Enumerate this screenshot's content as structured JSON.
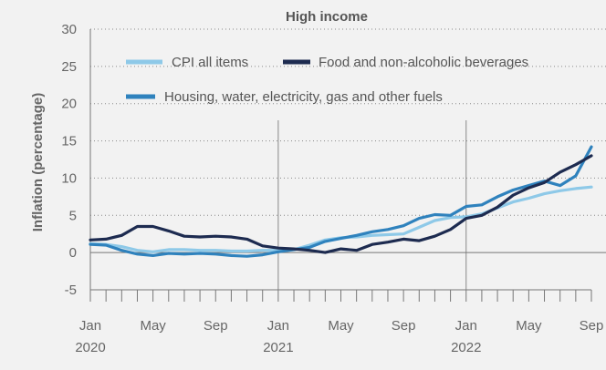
{
  "chart_data": {
    "type": "line",
    "title": "High income",
    "ylabel": "Inflation (percentage)",
    "xlabel": "",
    "ylim": [
      -5,
      30
    ],
    "yticks": [
      -5,
      0,
      5,
      10,
      15,
      20,
      25,
      30
    ],
    "grid": "dotted horizontal",
    "x": [
      "2020-01",
      "2020-02",
      "2020-03",
      "2020-04",
      "2020-05",
      "2020-06",
      "2020-07",
      "2020-08",
      "2020-09",
      "2020-10",
      "2020-11",
      "2020-12",
      "2021-01",
      "2021-02",
      "2021-03",
      "2021-04",
      "2021-05",
      "2021-06",
      "2021-07",
      "2021-08",
      "2021-09",
      "2021-10",
      "2021-11",
      "2021-12",
      "2022-01",
      "2022-02",
      "2022-03",
      "2022-04",
      "2022-05",
      "2022-06",
      "2022-07",
      "2022-08",
      "2022-09"
    ],
    "xtick_labels": [
      {
        "month": "Jan",
        "year": "2020",
        "index": 0
      },
      {
        "month": "May",
        "year": "",
        "index": 4
      },
      {
        "month": "Sep",
        "year": "",
        "index": 8
      },
      {
        "month": "Jan",
        "year": "2021",
        "index": 12
      },
      {
        "month": "May",
        "year": "",
        "index": 16
      },
      {
        "month": "Sep",
        "year": "",
        "index": 20
      },
      {
        "month": "Jan",
        "year": "2022",
        "index": 24
      },
      {
        "month": "May",
        "year": "",
        "index": 28
      },
      {
        "month": "Sep",
        "year": "",
        "index": 32
      }
    ],
    "year_dividers": [
      12,
      24
    ],
    "series": [
      {
        "name": "CPI all items",
        "color": "#8ec9e8",
        "values": [
          1.2,
          1.1,
          0.8,
          0.3,
          0.1,
          0.4,
          0.4,
          0.3,
          0.3,
          0.2,
          0.2,
          0.3,
          0.3,
          0.4,
          1.0,
          1.7,
          2.0,
          2.1,
          2.3,
          2.4,
          2.5,
          3.4,
          4.3,
          4.7,
          4.8,
          5.2,
          6.0,
          6.8,
          7.3,
          7.9,
          8.3,
          8.6,
          8.8
        ]
      },
      {
        "name": "Food and non-alcoholic beverages",
        "color": "#1d2b50",
        "values": [
          1.7,
          1.8,
          2.3,
          3.5,
          3.5,
          2.9,
          2.2,
          2.1,
          2.2,
          2.1,
          1.8,
          0.9,
          0.6,
          0.5,
          0.3,
          0.0,
          0.5,
          0.3,
          1.1,
          1.4,
          1.8,
          1.6,
          2.2,
          3.1,
          4.6,
          5.0,
          6.1,
          7.7,
          8.7,
          9.4,
          10.8,
          11.8,
          13.0
        ]
      },
      {
        "name": "Housing, water, electricity, gas and other fuels",
        "color": "#2f82bd",
        "values": [
          1.1,
          1.0,
          0.3,
          -0.2,
          -0.4,
          -0.1,
          -0.2,
          -0.1,
          -0.2,
          -0.4,
          -0.5,
          -0.3,
          0.1,
          0.4,
          0.7,
          1.5,
          1.9,
          2.3,
          2.8,
          3.1,
          3.6,
          4.6,
          5.1,
          5.0,
          6.2,
          6.4,
          7.5,
          8.4,
          9.0,
          9.6,
          9.0,
          10.3,
          14.2
        ]
      }
    ],
    "legend": {
      "placement": "top-left",
      "items": [
        {
          "label": "CPI all items",
          "color": "#8ec9e8"
        },
        {
          "label": "Food and non-alcoholic beverages",
          "color": "#1d2b50"
        },
        {
          "label": "Housing, water, electricity, gas and other fuels",
          "color": "#2f82bd"
        }
      ]
    }
  }
}
